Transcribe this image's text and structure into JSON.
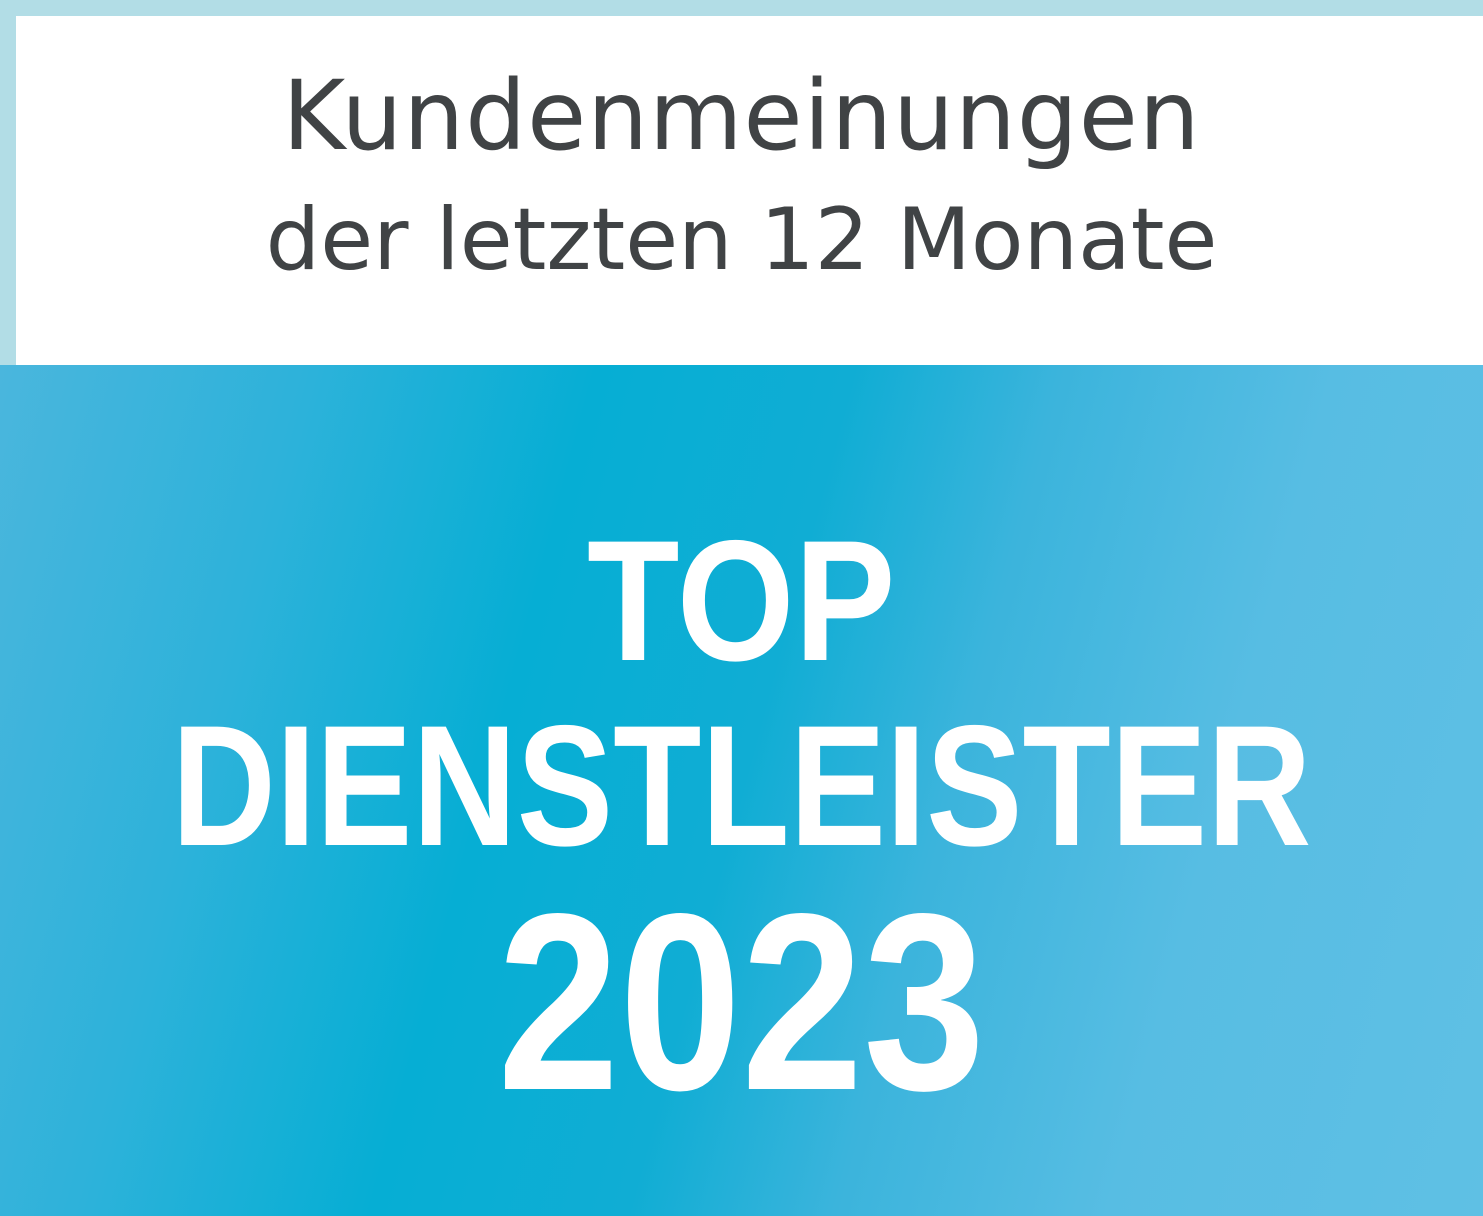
{
  "header": {
    "line1": "Kundenmeinungen",
    "line2": "der letzten 12 Monate"
  },
  "badge": {
    "line1": "TOP",
    "line2": "DIENSTLEISTER",
    "line3": "2023"
  },
  "colors": {
    "border": "#b2dde6",
    "accent_blue": "#06aed4",
    "light_blue": "#5fc0e4",
    "text_dark": "#404345"
  }
}
